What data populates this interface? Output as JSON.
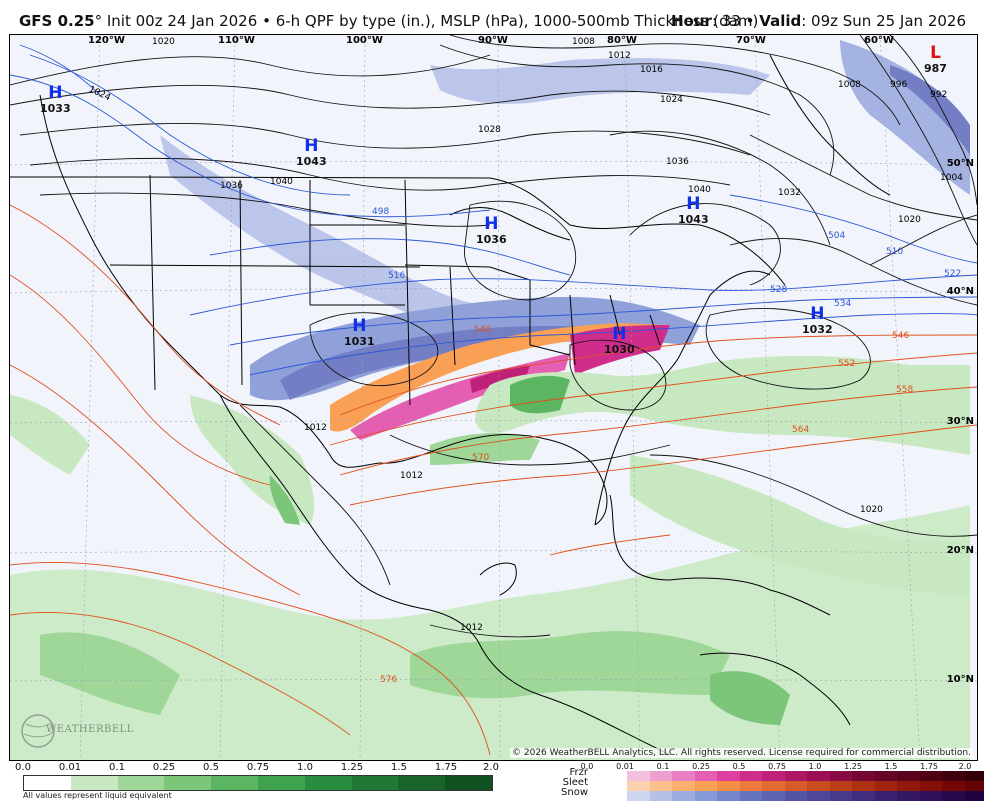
{
  "header": {
    "model": "GFS 0.25",
    "degree": "°",
    "init": "Init 00z 24 Jan 2026",
    "bullet": "•",
    "description": "6-h QPF by type (in.), MSLP (hPa), 1000-500mb Thickness (dam)",
    "hour_label": "Hour",
    "hour_value": ": 33",
    "valid_label": "Valid",
    "valid_value": ": 09z Sun 25 Jan 2026"
  },
  "map": {
    "lon_labels": [
      "120°W",
      "110°W",
      "100°W",
      "90°W",
      "80°W",
      "70°W",
      "60°W"
    ],
    "lat_labels": [
      "50°N",
      "40°N",
      "30°N",
      "20°N",
      "10°N"
    ],
    "highs": [
      {
        "letter": "H",
        "value": "1033"
      },
      {
        "letter": "H",
        "value": "1043"
      },
      {
        "letter": "H",
        "value": "1036"
      },
      {
        "letter": "H",
        "value": "1043"
      },
      {
        "letter": "H",
        "value": "1031"
      },
      {
        "letter": "H",
        "value": "1030"
      },
      {
        "letter": "H",
        "value": "1032"
      }
    ],
    "lows": [
      {
        "letter": "L",
        "value": "987"
      }
    ],
    "isobar_labels": [
      "1020",
      "1024",
      "1008",
      "1012",
      "1016",
      "1024",
      "1028",
      "1036",
      "1040",
      "1036",
      "1040",
      "1032",
      "1020",
      "1012",
      "1012",
      "1020",
      "1012",
      "996",
      "992",
      "1004",
      "1008"
    ],
    "thickness_blue_labels": [
      "498",
      "516",
      "528",
      "534",
      "510",
      "522",
      "504"
    ],
    "thickness_red_labels": [
      "546",
      "552",
      "558",
      "564",
      "570",
      "540",
      "576"
    ],
    "logo_text": "WEATHERBELL",
    "copyright": "© 2026 WeatherBELL Analytics, LLC. All rights reserved. License required for commercial distribution."
  },
  "qpf_legend": {
    "ticks": [
      "0.0",
      "0.01",
      "0.1",
      "0.25",
      "0.5",
      "0.75",
      "1.0",
      "1.25",
      "1.5",
      "1.75",
      "2.0"
    ],
    "colors": [
      "#ffffff",
      "#c7e8c0",
      "#9fd799",
      "#7cc67a",
      "#5cb661",
      "#3ea24e",
      "#2a8c3e",
      "#1f7834",
      "#17652a",
      "#0f5220"
    ],
    "note": "All values represent liquid equivalent"
  },
  "ptype_legend": {
    "ticks": [
      "0.0",
      "0.01",
      "0.1",
      "0.25",
      "0.5",
      "0.75",
      "1.0",
      "1.25",
      "1.5",
      "1.75",
      "2.0"
    ],
    "labels": [
      "Frzr",
      "Sleet",
      "Snow"
    ],
    "frzr_colors": [
      "#f3c1df",
      "#ee9fcf",
      "#e97fc0",
      "#e45fb1",
      "#dc3f9f",
      "#cf2d8b",
      "#bf2078",
      "#ad1765",
      "#9a1053",
      "#870b42",
      "#760732",
      "#680426",
      "#5b021c",
      "#4f0014",
      "#41000e",
      "#330009"
    ],
    "sleet_colors": [
      "#fbd1b0",
      "#fbc08c",
      "#fab06e",
      "#f9a055",
      "#f48d45",
      "#ec7a3a",
      "#e16a31",
      "#d55b28",
      "#c94c20",
      "#bc3e19",
      "#ae3113",
      "#a0250e",
      "#91190a",
      "#830f07",
      "#750605",
      "#660303"
    ],
    "snow_colors": [
      "#cdd6f0",
      "#b5c1e8",
      "#9dade0",
      "#8699d7",
      "#7485cc",
      "#6672c0",
      "#5d62b3",
      "#5553a6",
      "#4e4699",
      "#47398b",
      "#412d7e",
      "#3b2271",
      "#341864",
      "#2e0f58",
      "#27084b",
      "#20033f"
    ]
  }
}
